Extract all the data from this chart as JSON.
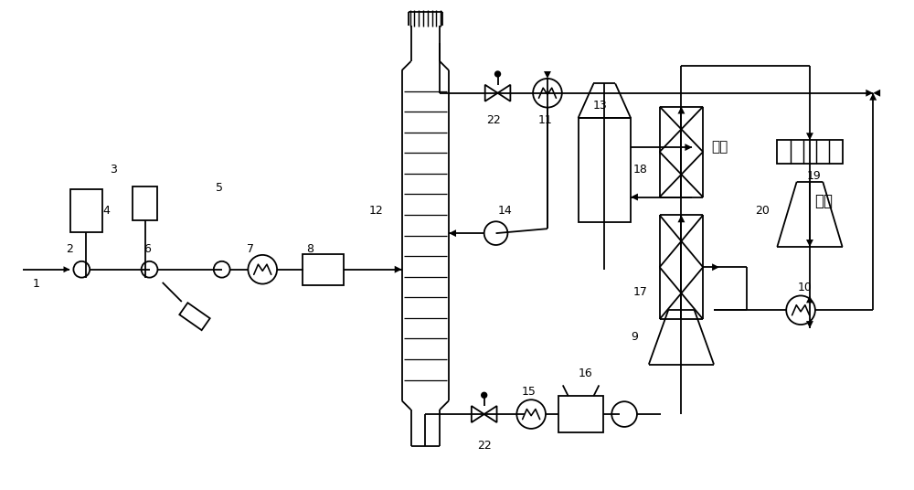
{
  "bg_color": "#ffffff",
  "line_color": "#000000",
  "lw": 1.3,
  "fig_width": 10.0,
  "fig_height": 5.36
}
